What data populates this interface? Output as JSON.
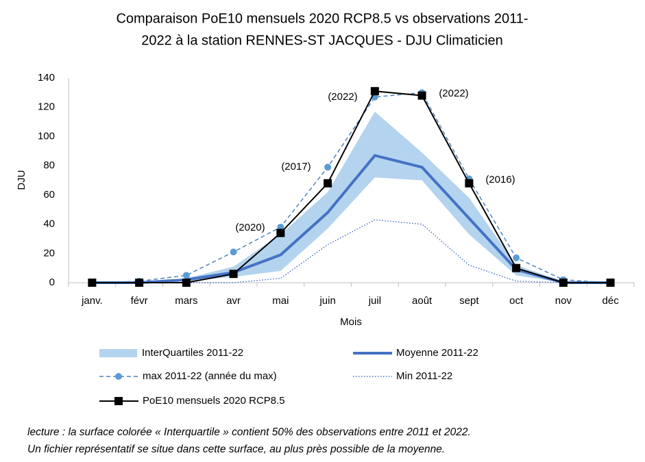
{
  "chart_data": {
    "type": "line",
    "title": [
      "Comparaison PoE10 mensuels 2020 RCP8.5 vs observations 2011-",
      "2022 à la station RENNES-ST JACQUES - DJU Climaticien"
    ],
    "x_label": "Mois",
    "y_label": "DJU",
    "categories": [
      "janv.",
      "févr",
      "mars",
      "avr",
      "mai",
      "juin",
      "juil",
      "août",
      "sept",
      "oct",
      "nov",
      "déc"
    ],
    "ylim": [
      0,
      140
    ],
    "yticks": [
      0,
      20,
      40,
      60,
      80,
      100,
      120,
      140
    ],
    "band": {
      "name": "InterQuartiles 2011-22",
      "color": "#b4d3ee",
      "lower": [
        0,
        0,
        1,
        4,
        8,
        37,
        72,
        70,
        33,
        5,
        0,
        0
      ],
      "upper": [
        0,
        0,
        3,
        11,
        33,
        62,
        117,
        89,
        58,
        12,
        1,
        0
      ]
    },
    "series": [
      {
        "name": "Moyenne 2011-22",
        "color": "#4472c4",
        "line_style": "solid",
        "marker": "none",
        "values": [
          0,
          0,
          2,
          7,
          19,
          48,
          87,
          79,
          44,
          9,
          0,
          0
        ]
      },
      {
        "name": "max 2011-22 (année du max)",
        "color": "#4f81bd",
        "line_style": "dashed",
        "marker": "circle",
        "values": [
          0,
          1,
          5,
          21,
          38,
          79,
          127,
          130,
          71,
          17,
          2,
          0
        ]
      },
      {
        "name": "Min 2011-22",
        "color": "#4472c4",
        "line_style": "dotted",
        "marker": "none",
        "values": [
          0,
          0,
          0,
          0,
          3,
          26,
          43,
          40,
          12,
          1,
          0,
          0
        ]
      },
      {
        "name": "PoE10 mensuels 2020 RCP8.5",
        "color": "#000000",
        "line_style": "solid",
        "marker": "square",
        "values": [
          0,
          0,
          0,
          6,
          34,
          68,
          131,
          128,
          68,
          10,
          0,
          0
        ]
      }
    ],
    "annotations": [
      "(2020)",
      "(2017)",
      "(2022)",
      "(2022)",
      "(2016)"
    ],
    "footnote": [
      "lecture : la surface colorée « Interquartile » contient 50% des observations entre 2011 et 2022.",
      "Un fichier représentatif se situe dans cette surface, au plus près possible de la moyenne."
    ]
  }
}
